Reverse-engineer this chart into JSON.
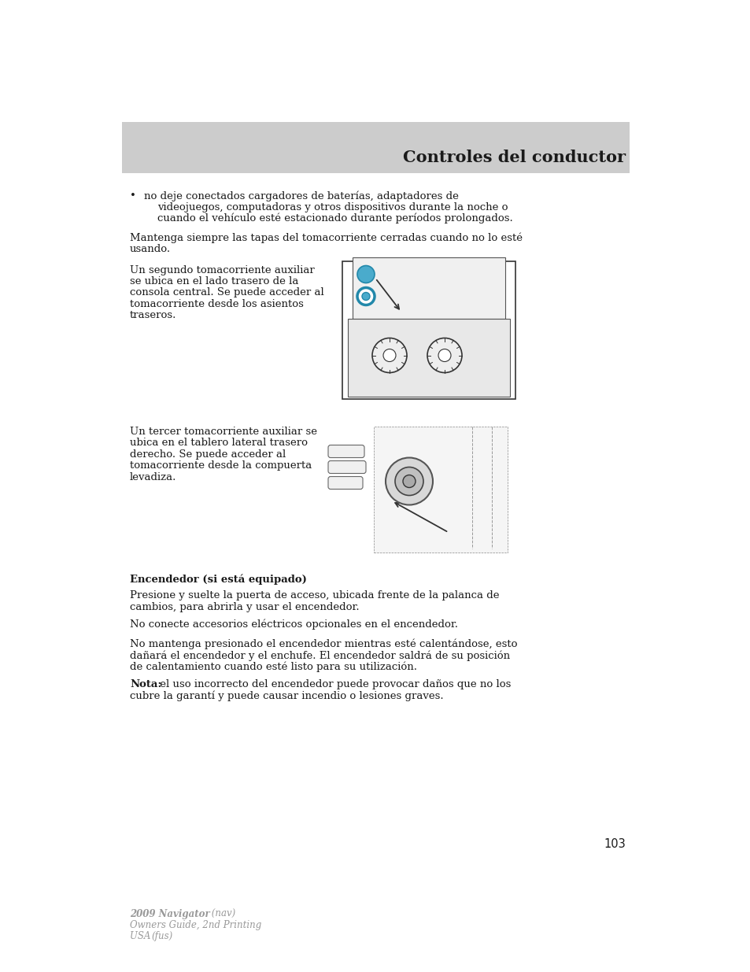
{
  "page_bg": "#ffffff",
  "header_bg": "#cccccc",
  "header_text": "Controles del conductor",
  "header_text_color": "#1a1a1a",
  "header_fontsize": 15,
  "body_fontsize": 9.5,
  "body_color": "#1a1a1a",
  "small_fontsize": 8.5,
  "page_number": "103",
  "footer_color": "#999999",
  "bullet_text_line1": "no deje conectados cargadores de baterías, adaptadores de",
  "bullet_text_line2": "videojuegos, computadoras y otros dispositivos durante la noche o",
  "bullet_text_line3": "cuando el vehículo esté estacionado durante períodos prolongados.",
  "para1_line1": "Mantenga siempre las tapas del tomacorriente cerradas cuando no lo esté",
  "para1_line2": "usando.",
  "para2_line1": "Un segundo tomacorriente auxiliar",
  "para2_line2": "se ubica en el lado trasero de la",
  "para2_line3": "consola central. Se puede acceder al",
  "para2_line4": "tomacorriente desde los asientos",
  "para2_line5": "traseros.",
  "para3_line1": "Un tercer tomacorriente auxiliar se",
  "para3_line2": "ubica en el tablero lateral trasero",
  "para3_line3": "derecho. Se puede acceder al",
  "para3_line4": "tomacorriente desde la compuerta",
  "para3_line5": "levadiza.",
  "section_header": "Encendedor (si está equipado)",
  "section_para1_line1": "Presione y suelte la puerta de acceso, ubicada frente de la palanca de",
  "section_para1_line2": "cambios, para abrirla y usar el encendedor.",
  "section_para2": "No conecte accesorios eléctricos opcionales en el encendedor.",
  "section_para3_line1": "No mantenga presionado el encendedor mientras esté calentándose, esto",
  "section_para3_line2": "dañará el encendedor y el enchufe. El encendedor saldrá de su posición",
  "section_para3_line3": "de calentamiento cuando esté listo para su utilización.",
  "section_note_bold": "Nota:",
  "section_note_rest_line1": " el uso incorrecto del encendedor puede provocar daños que no los",
  "section_note_rest_line2": "cubre la garantí y puede causar incendio o lesiones graves.",
  "footer_bold": "2009 Navigator",
  "footer_italic1": " (nav)",
  "footer_line2": "Owners Guide, 2nd Printing",
  "footer_line3a": "USA ",
  "footer_line3b": "(fus)"
}
